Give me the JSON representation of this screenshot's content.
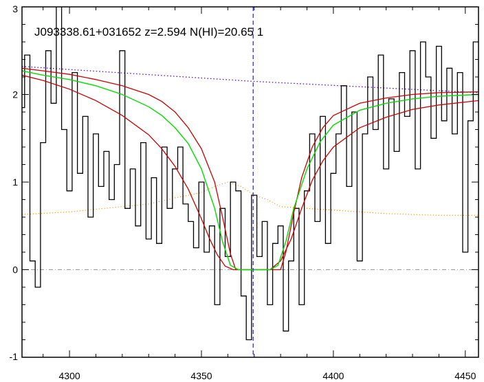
{
  "chart_data": {
    "type": "line",
    "title": "J093338.61+031652 z=2.594 N(HI)=20.65 1",
    "xlabel": "",
    "ylabel": "",
    "xlim": [
      4282,
      4455
    ],
    "ylim": [
      -1,
      3
    ],
    "x_ticks": [
      4300,
      4350,
      4400,
      4450
    ],
    "y_ticks": [
      -1,
      0,
      1,
      2,
      3
    ],
    "grid": false,
    "colors": {
      "flux": "#000000",
      "fit": "#00dd00",
      "fit_bounds": "#cc0000",
      "continuum": "#5500ff",
      "error": "#ff8800",
      "zero_line": "#999999",
      "center_line": "#2222cc"
    },
    "center_x": 4369.6,
    "zero_level": 0,
    "continuum": {
      "x": [
        4282,
        4369.6,
        4455
      ],
      "y": [
        2.32,
        2.15,
        2.02
      ]
    },
    "error": {
      "x": [
        4282,
        4300,
        4310,
        4320,
        4330,
        4340,
        4350,
        4355,
        4360,
        4365,
        4370,
        4375,
        4380,
        4390,
        4400,
        4410,
        4420,
        4430,
        4440,
        4455
      ],
      "y": [
        0.63,
        0.66,
        0.69,
        0.72,
        0.75,
        0.82,
        0.88,
        0.95,
        1.0,
        0.95,
        0.85,
        0.8,
        0.72,
        0.7,
        0.68,
        0.66,
        0.64,
        0.63,
        0.62,
        0.62
      ]
    },
    "fit": {
      "x": [
        4282,
        4290,
        4300,
        4310,
        4320,
        4330,
        4335,
        4340,
        4345,
        4350,
        4355,
        4358,
        4361,
        4364,
        4376,
        4379,
        4382,
        4385,
        4390,
        4395,
        4400,
        4410,
        4420,
        4430,
        4440,
        4455
      ],
      "y": [
        2.27,
        2.22,
        2.17,
        2.1,
        2.0,
        1.86,
        1.76,
        1.62,
        1.44,
        1.15,
        0.7,
        0.32,
        0.05,
        0.0,
        0.0,
        0.05,
        0.32,
        0.7,
        1.15,
        1.46,
        1.65,
        1.82,
        1.9,
        1.95,
        1.98,
        2.0
      ]
    },
    "fit_upper": {
      "x": [
        4282,
        4290,
        4300,
        4310,
        4320,
        4330,
        4335,
        4340,
        4345,
        4350,
        4355,
        4358,
        4361,
        4363,
        4380,
        4382,
        4385,
        4388,
        4392,
        4396,
        4400,
        4410,
        4420,
        4430,
        4440,
        4455
      ],
      "y": [
        2.3,
        2.27,
        2.23,
        2.17,
        2.1,
        2.0,
        1.92,
        1.8,
        1.62,
        1.38,
        1.0,
        0.6,
        0.18,
        0.0,
        0.0,
        0.2,
        0.65,
        1.05,
        1.4,
        1.62,
        1.76,
        1.9,
        1.96,
        2.0,
        2.02,
        2.03
      ]
    },
    "fit_lower": {
      "x": [
        4282,
        4290,
        4300,
        4310,
        4320,
        4330,
        4335,
        4340,
        4345,
        4350,
        4353,
        4356,
        4359,
        4362,
        4364,
        4376,
        4380,
        4384,
        4388,
        4392,
        4396,
        4400,
        4410,
        4420,
        4430,
        4440,
        4455
      ],
      "y": [
        2.22,
        2.16,
        2.06,
        1.93,
        1.76,
        1.54,
        1.38,
        1.18,
        0.92,
        0.58,
        0.36,
        0.17,
        0.04,
        0.0,
        0.0,
        0.0,
        0.1,
        0.35,
        0.7,
        1.02,
        1.24,
        1.4,
        1.62,
        1.74,
        1.83,
        1.88,
        1.93
      ]
    },
    "flux": {
      "x": [
        4282,
        4284,
        4286,
        4288,
        4290,
        4292,
        4294,
        4296,
        4298,
        4300,
        4302,
        4304,
        4306,
        4308,
        4310,
        4312,
        4314,
        4316,
        4318,
        4320,
        4322,
        4324,
        4326,
        4328,
        4330,
        4332,
        4334,
        4336,
        4338,
        4340,
        4342,
        4344,
        4346,
        4348,
        4350,
        4352,
        4354,
        4356,
        4358,
        4360,
        4362,
        4364,
        4366,
        4368,
        4370,
        4372,
        4374,
        4376,
        4378,
        4380,
        4382,
        4384,
        4386,
        4388,
        4390,
        4392,
        4394,
        4396,
        4398,
        4400,
        4402,
        4404,
        4406,
        4408,
        4410,
        4412,
        4414,
        4416,
        4418,
        4420,
        4422,
        4424,
        4426,
        4428,
        4430,
        4432,
        4434,
        4436,
        4438,
        4440,
        4442,
        4444,
        4446,
        4448,
        4450,
        4452,
        4454
      ],
      "y": [
        1.85,
        2.45,
        0.1,
        -0.2,
        1.45,
        2.5,
        1.9,
        3.05,
        1.6,
        0.9,
        2.25,
        1.1,
        1.75,
        0.6,
        1.55,
        0.95,
        1.35,
        0.8,
        1.2,
        2.5,
        0.7,
        1.15,
        0.5,
        1.45,
        0.35,
        1.05,
        0.3,
        1.4,
        0.7,
        1.15,
        1.4,
        0.75,
        0.55,
        0.25,
        1.0,
        0.2,
        0.5,
        -0.4,
        0.7,
        0.15,
        1.0,
        0.9,
        -0.3,
        -0.8,
        0.85,
        0.15,
        0.55,
        -0.4,
        0.3,
        0.5,
        -0.7,
        0.1,
        0.7,
        -0.4,
        0.9,
        1.55,
        0.55,
        1.75,
        0.3,
        1.1,
        1.55,
        2.1,
        0.95,
        1.8,
        0.1,
        1.55,
        2.2,
        1.6,
        2.45,
        1.15,
        1.95,
        1.35,
        2.25,
        1.75,
        2.5,
        1.15,
        2.6,
        2.2,
        1.5,
        2.55,
        1.7,
        2.3,
        1.55,
        2.25,
        0.2,
        1.7,
        2.6
      ]
    }
  }
}
